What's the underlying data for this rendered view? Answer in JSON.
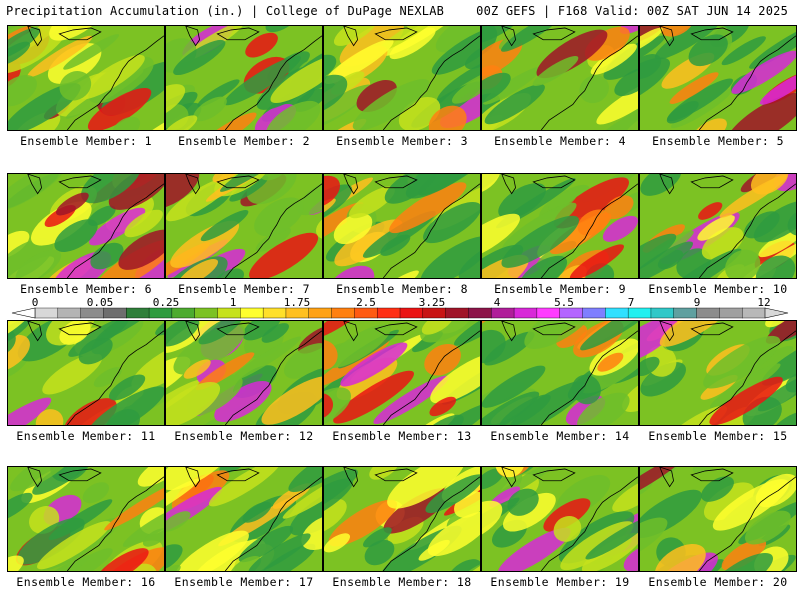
{
  "header": {
    "left_title": "Precipitation Accumulation (in.) | College of DuPage NEXLAB",
    "right_title": "00Z GEFS | F168 Valid: 00Z SAT JUN 14 2025"
  },
  "panels": [
    {
      "label": "Ensemble Member: 1"
    },
    {
      "label": "Ensemble Member: 2"
    },
    {
      "label": "Ensemble Member: 3"
    },
    {
      "label": "Ensemble Member: 4"
    },
    {
      "label": "Ensemble Member: 5"
    },
    {
      "label": "Ensemble Member: 6"
    },
    {
      "label": "Ensemble Member: 7"
    },
    {
      "label": "Ensemble Member: 8"
    },
    {
      "label": "Ensemble Member: 9"
    },
    {
      "label": "Ensemble Member: 10"
    },
    {
      "label": "Ensemble Member: 11"
    },
    {
      "label": "Ensemble Member: 12"
    },
    {
      "label": "Ensemble Member: 13"
    },
    {
      "label": "Ensemble Member: 14"
    },
    {
      "label": "Ensemble Member: 15"
    },
    {
      "label": "Ensemble Member: 16"
    },
    {
      "label": "Ensemble Member: 17"
    },
    {
      "label": "Ensemble Member: 18"
    },
    {
      "label": "Ensemble Member: 19"
    },
    {
      "label": "Ensemble Member: 20"
    }
  ],
  "colorbar": {
    "tick_labels": [
      "0",
      "0.05",
      "0.25",
      "1",
      "1.75",
      "2.5",
      "3.25",
      "4",
      "5.5",
      "7",
      "9",
      "12"
    ],
    "colors": [
      "#d8d8d8",
      "#b4b4b4",
      "#8c8c8c",
      "#6e6e6e",
      "#2f7f3a",
      "#2f9b3f",
      "#4dab2f",
      "#7cc223",
      "#c6e21c",
      "#ffff2e",
      "#ffe02a",
      "#ffc01f",
      "#ffa215",
      "#ff8010",
      "#ff5a12",
      "#ff2f14",
      "#ea1414",
      "#c81414",
      "#a01428",
      "#8c1448",
      "#b01e9a",
      "#d828d8",
      "#ff3cff",
      "#b465ff",
      "#7f7fff",
      "#31e0ff",
      "#22f0f0",
      "#30c8c8",
      "#5fa0a0",
      "#8c8c8c",
      "#a0a0a0",
      "#b8b8b8"
    ]
  }
}
